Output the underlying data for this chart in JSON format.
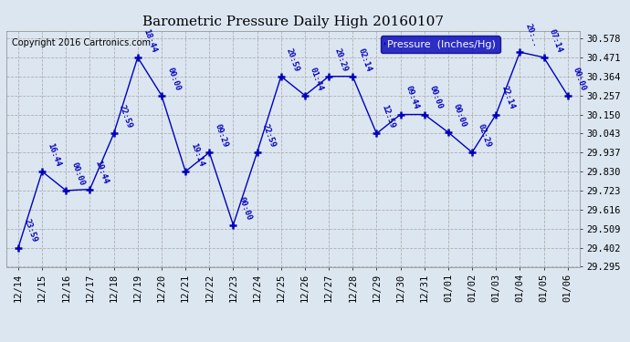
{
  "title": "Barometric Pressure Daily High 20160107",
  "copyright": "Copyright 2016 Cartronics.com",
  "legend_label": "Pressure  (Inches/Hg)",
  "x_labels": [
    "12/14",
    "12/15",
    "12/16",
    "12/17",
    "12/18",
    "12/19",
    "12/20",
    "12/21",
    "12/22",
    "12/23",
    "12/24",
    "12/25",
    "12/26",
    "12/27",
    "12/28",
    "12/29",
    "12/30",
    "12/31",
    "01/01",
    "01/02",
    "01/03",
    "01/04",
    "01/05",
    "01/06"
  ],
  "y_values": [
    29.402,
    29.83,
    29.723,
    29.73,
    30.043,
    30.471,
    30.257,
    29.83,
    29.937,
    29.53,
    29.937,
    30.364,
    30.257,
    30.364,
    30.364,
    30.043,
    30.15,
    30.15,
    30.05,
    29.937,
    30.15,
    30.5,
    30.471,
    30.257
  ],
  "point_labels": [
    "23:59",
    "16:44",
    "00:00",
    "19:44",
    "22:59",
    "18:44",
    "00:00",
    "19:14",
    "09:29",
    "00:00",
    "22:59",
    "20:59",
    "01:44",
    "20:29",
    "02:14",
    "12:59",
    "09:44",
    "00:00",
    "00:00",
    "02:29",
    "22:14",
    "20:..",
    "07:14",
    "00:00"
  ],
  "ylim_min": 29.295,
  "ylim_max": 30.62,
  "yticks": [
    29.295,
    29.402,
    29.509,
    29.616,
    29.723,
    29.83,
    29.937,
    30.043,
    30.15,
    30.257,
    30.364,
    30.471,
    30.578
  ],
  "line_color": "#0000bb",
  "marker_color": "#0000bb",
  "bg_color": "#dce6f1",
  "grid_color": "#aaaaaa",
  "title_color": "#000000",
  "label_color": "#0000bb",
  "legend_bg": "#0000bb",
  "legend_text": "#ffffff",
  "fig_width": 6.9,
  "fig_height": 3.75,
  "dpi": 100
}
